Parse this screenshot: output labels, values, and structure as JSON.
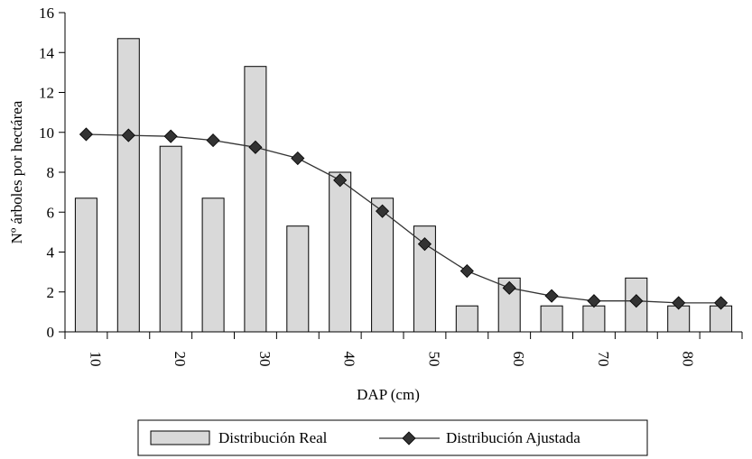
{
  "chart_data": {
    "type": "bar",
    "xlabel": "DAP (cm)",
    "ylabel": "Nº árboles por hectárea",
    "ylim": [
      0,
      16
    ],
    "yticks": [
      0,
      2,
      4,
      6,
      8,
      10,
      12,
      14,
      16
    ],
    "x": [
      10,
      15,
      20,
      25,
      30,
      35,
      40,
      45,
      50,
      55,
      60,
      65,
      70,
      75,
      80,
      85
    ],
    "xtick_labels": [
      "10",
      "20",
      "30",
      "40",
      "50",
      "60",
      "70",
      "80"
    ],
    "xtick_values": [
      10,
      20,
      30,
      40,
      50,
      60,
      70,
      80
    ],
    "grid": false,
    "legend_position": "bottom",
    "series": [
      {
        "name": "Distribución Real",
        "kind": "bar",
        "color": "#d9d9d9",
        "values": [
          6.7,
          14.7,
          9.3,
          6.7,
          13.3,
          5.3,
          8.0,
          6.7,
          5.3,
          1.3,
          2.7,
          1.3,
          1.3,
          2.7,
          1.3,
          1.3
        ]
      },
      {
        "name": "Distribución Ajustada",
        "kind": "line",
        "marker": "diamond",
        "color": "#333333",
        "values": [
          9.9,
          9.85,
          9.8,
          9.6,
          9.25,
          8.7,
          7.6,
          6.05,
          4.4,
          3.05,
          2.2,
          1.8,
          1.55,
          1.55,
          1.45,
          1.45
        ]
      }
    ]
  }
}
